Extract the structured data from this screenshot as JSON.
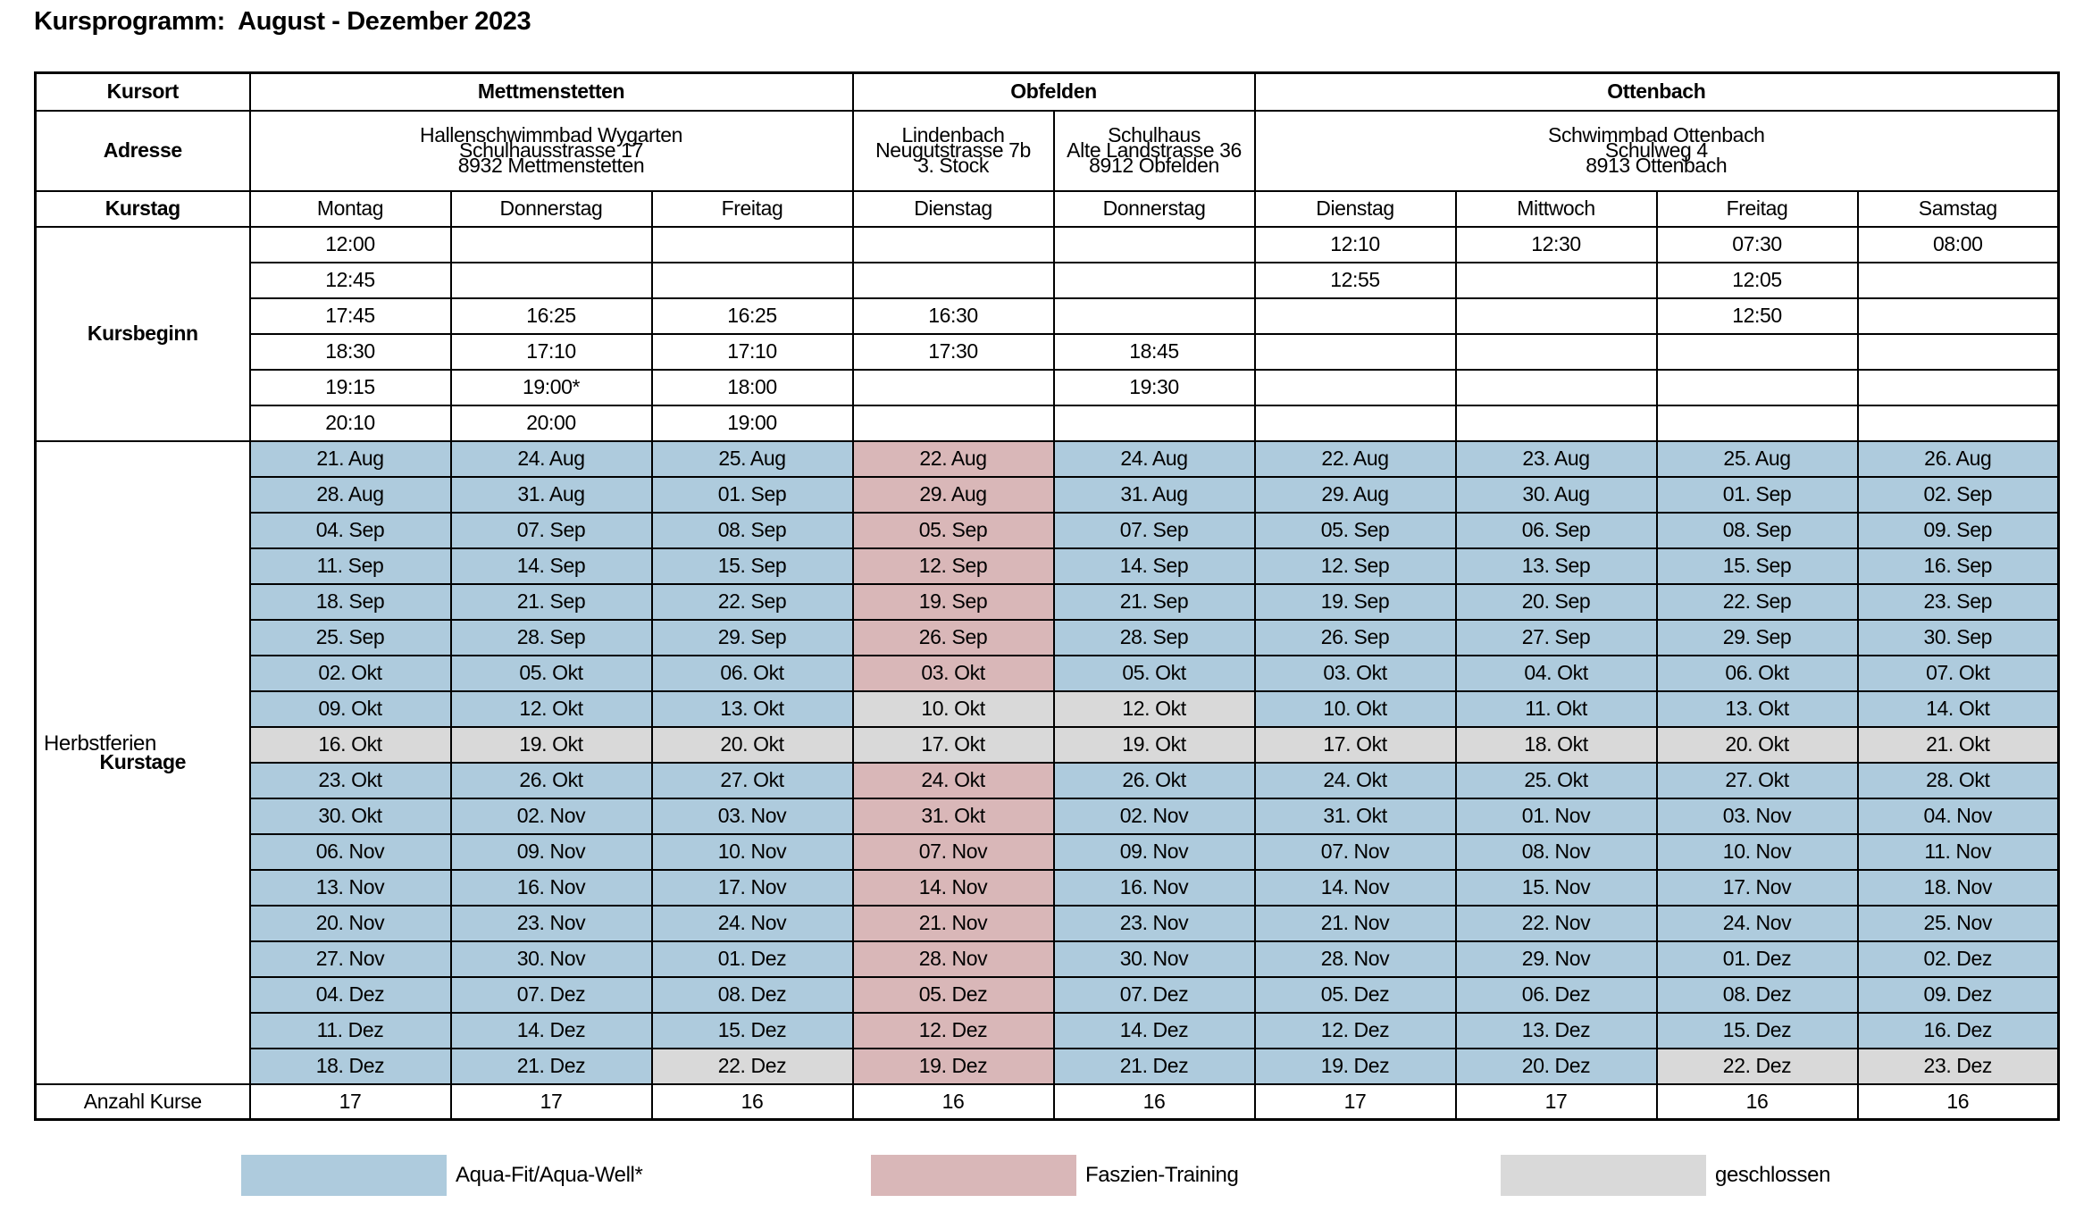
{
  "title": "Kursprogramm:  August - Dezember 2023",
  "colors": {
    "aqua_fit": "#aecbdd",
    "faszien_training": "#d9b7b8",
    "geschlossen": "#d9d9d9",
    "border": "#000000"
  },
  "table": {
    "labels": {
      "kursort": "Kursort",
      "adresse": "Adresse",
      "kurstag": "Kurstag",
      "kursbeginn": "Kursbeginn",
      "kurstage": "Kurstage",
      "herbstferien": "Herbstferien",
      "anzahl_kurse": "Anzahl Kurse"
    },
    "locations": [
      {
        "name": "Mettmenstetten",
        "colspan": 3,
        "addresses": [
          {
            "colspan": 3,
            "lines": [
              "Hallenschwimmbad Wygarten",
              "Schulhausstrasse 17",
              "8932 Mettmenstetten"
            ]
          }
        ]
      },
      {
        "name": "Obfelden",
        "colspan": 2,
        "addresses": [
          {
            "colspan": 1,
            "lines": [
              "Lindenbach",
              "Neugutstrasse 7b",
              "3. Stock"
            ]
          },
          {
            "colspan": 1,
            "lines": [
              "Schulhaus",
              "Alte Landstrasse 36",
              "8912 Obfelden"
            ]
          }
        ]
      },
      {
        "name": "Ottenbach",
        "colspan": 4,
        "addresses": [
          {
            "colspan": 4,
            "lines": [
              "Schwimmbad Ottenbach",
              "Schulweg 4",
              "8913 Ottenbach"
            ]
          }
        ]
      }
    ],
    "day_headers": [
      "Montag",
      "Donnerstag",
      "Freitag",
      "Dienstag",
      "Donnerstag",
      "Dienstag",
      "Mittwoch",
      "Freitag",
      "Samstag"
    ],
    "start_times": [
      [
        "12:00",
        "",
        "",
        "",
        "",
        "12:10",
        "12:30",
        "07:30",
        "08:00"
      ],
      [
        "12:45",
        "",
        "",
        "",
        "",
        "12:55",
        "",
        "12:05",
        ""
      ],
      [
        "17:45",
        "16:25",
        "16:25",
        "16:30",
        "",
        "",
        "",
        "12:50",
        ""
      ],
      [
        "18:30",
        "17:10",
        "17:10",
        "17:30",
        "18:45",
        "",
        "",
        "",
        ""
      ],
      [
        "19:15",
        "19:00*",
        "18:00",
        "",
        "19:30",
        "",
        "",
        "",
        ""
      ],
      [
        "20:10",
        "20:00",
        "19:00",
        "",
        "",
        "",
        "",
        "",
        ""
      ]
    ],
    "herbstferien_row_index": 8,
    "course_day_rows": [
      [
        [
          "21. Aug",
          "aqua_fit"
        ],
        [
          "24. Aug",
          "aqua_fit"
        ],
        [
          "25. Aug",
          "aqua_fit"
        ],
        [
          "22. Aug",
          "faszien_training"
        ],
        [
          "24. Aug",
          "aqua_fit"
        ],
        [
          "22. Aug",
          "aqua_fit"
        ],
        [
          "23. Aug",
          "aqua_fit"
        ],
        [
          "25. Aug",
          "aqua_fit"
        ],
        [
          "26. Aug",
          "aqua_fit"
        ]
      ],
      [
        [
          "28. Aug",
          "aqua_fit"
        ],
        [
          "31. Aug",
          "aqua_fit"
        ],
        [
          "01. Sep",
          "aqua_fit"
        ],
        [
          "29. Aug",
          "faszien_training"
        ],
        [
          "31. Aug",
          "aqua_fit"
        ],
        [
          "29. Aug",
          "aqua_fit"
        ],
        [
          "30. Aug",
          "aqua_fit"
        ],
        [
          "01. Sep",
          "aqua_fit"
        ],
        [
          "02. Sep",
          "aqua_fit"
        ]
      ],
      [
        [
          "04. Sep",
          "aqua_fit"
        ],
        [
          "07. Sep",
          "aqua_fit"
        ],
        [
          "08. Sep",
          "aqua_fit"
        ],
        [
          "05. Sep",
          "faszien_training"
        ],
        [
          "07. Sep",
          "aqua_fit"
        ],
        [
          "05. Sep",
          "aqua_fit"
        ],
        [
          "06. Sep",
          "aqua_fit"
        ],
        [
          "08. Sep",
          "aqua_fit"
        ],
        [
          "09. Sep",
          "aqua_fit"
        ]
      ],
      [
        [
          "11. Sep",
          "aqua_fit"
        ],
        [
          "14. Sep",
          "aqua_fit"
        ],
        [
          "15. Sep",
          "aqua_fit"
        ],
        [
          "12. Sep",
          "faszien_training"
        ],
        [
          "14. Sep",
          "aqua_fit"
        ],
        [
          "12. Sep",
          "aqua_fit"
        ],
        [
          "13. Sep",
          "aqua_fit"
        ],
        [
          "15. Sep",
          "aqua_fit"
        ],
        [
          "16. Sep",
          "aqua_fit"
        ]
      ],
      [
        [
          "18. Sep",
          "aqua_fit"
        ],
        [
          "21. Sep",
          "aqua_fit"
        ],
        [
          "22. Sep",
          "aqua_fit"
        ],
        [
          "19. Sep",
          "faszien_training"
        ],
        [
          "21. Sep",
          "aqua_fit"
        ],
        [
          "19. Sep",
          "aqua_fit"
        ],
        [
          "20. Sep",
          "aqua_fit"
        ],
        [
          "22. Sep",
          "aqua_fit"
        ],
        [
          "23. Sep",
          "aqua_fit"
        ]
      ],
      [
        [
          "25. Sep",
          "aqua_fit"
        ],
        [
          "28. Sep",
          "aqua_fit"
        ],
        [
          "29. Sep",
          "aqua_fit"
        ],
        [
          "26. Sep",
          "faszien_training"
        ],
        [
          "28. Sep",
          "aqua_fit"
        ],
        [
          "26. Sep",
          "aqua_fit"
        ],
        [
          "27. Sep",
          "aqua_fit"
        ],
        [
          "29. Sep",
          "aqua_fit"
        ],
        [
          "30. Sep",
          "aqua_fit"
        ]
      ],
      [
        [
          "02. Okt",
          "aqua_fit"
        ],
        [
          "05. Okt",
          "aqua_fit"
        ],
        [
          "06. Okt",
          "aqua_fit"
        ],
        [
          "03. Okt",
          "faszien_training"
        ],
        [
          "05. Okt",
          "aqua_fit"
        ],
        [
          "03. Okt",
          "aqua_fit"
        ],
        [
          "04. Okt",
          "aqua_fit"
        ],
        [
          "06. Okt",
          "aqua_fit"
        ],
        [
          "07. Okt",
          "aqua_fit"
        ]
      ],
      [
        [
          "09. Okt",
          "aqua_fit"
        ],
        [
          "12. Okt",
          "aqua_fit"
        ],
        [
          "13. Okt",
          "aqua_fit"
        ],
        [
          "10. Okt",
          "geschlossen"
        ],
        [
          "12. Okt",
          "geschlossen"
        ],
        [
          "10. Okt",
          "aqua_fit"
        ],
        [
          "11. Okt",
          "aqua_fit"
        ],
        [
          "13. Okt",
          "aqua_fit"
        ],
        [
          "14. Okt",
          "aqua_fit"
        ]
      ],
      [
        [
          "16. Okt",
          "geschlossen"
        ],
        [
          "19. Okt",
          "geschlossen"
        ],
        [
          "20. Okt",
          "geschlossen"
        ],
        [
          "17. Okt",
          "geschlossen"
        ],
        [
          "19. Okt",
          "geschlossen"
        ],
        [
          "17. Okt",
          "geschlossen"
        ],
        [
          "18. Okt",
          "geschlossen"
        ],
        [
          "20. Okt",
          "geschlossen"
        ],
        [
          "21. Okt",
          "geschlossen"
        ]
      ],
      [
        [
          "23. Okt",
          "aqua_fit"
        ],
        [
          "26. Okt",
          "aqua_fit"
        ],
        [
          "27. Okt",
          "aqua_fit"
        ],
        [
          "24. Okt",
          "faszien_training"
        ],
        [
          "26. Okt",
          "aqua_fit"
        ],
        [
          "24. Okt",
          "aqua_fit"
        ],
        [
          "25. Okt",
          "aqua_fit"
        ],
        [
          "27. Okt",
          "aqua_fit"
        ],
        [
          "28. Okt",
          "aqua_fit"
        ]
      ],
      [
        [
          "30. Okt",
          "aqua_fit"
        ],
        [
          "02. Nov",
          "aqua_fit"
        ],
        [
          "03. Nov",
          "aqua_fit"
        ],
        [
          "31. Okt",
          "faszien_training"
        ],
        [
          "02. Nov",
          "aqua_fit"
        ],
        [
          "31. Okt",
          "aqua_fit"
        ],
        [
          "01. Nov",
          "aqua_fit"
        ],
        [
          "03. Nov",
          "aqua_fit"
        ],
        [
          "04. Nov",
          "aqua_fit"
        ]
      ],
      [
        [
          "06. Nov",
          "aqua_fit"
        ],
        [
          "09. Nov",
          "aqua_fit"
        ],
        [
          "10. Nov",
          "aqua_fit"
        ],
        [
          "07. Nov",
          "faszien_training"
        ],
        [
          "09. Nov",
          "aqua_fit"
        ],
        [
          "07. Nov",
          "aqua_fit"
        ],
        [
          "08. Nov",
          "aqua_fit"
        ],
        [
          "10. Nov",
          "aqua_fit"
        ],
        [
          "11. Nov",
          "aqua_fit"
        ]
      ],
      [
        [
          "13. Nov",
          "aqua_fit"
        ],
        [
          "16. Nov",
          "aqua_fit"
        ],
        [
          "17. Nov",
          "aqua_fit"
        ],
        [
          "14. Nov",
          "faszien_training"
        ],
        [
          "16. Nov",
          "aqua_fit"
        ],
        [
          "14. Nov",
          "aqua_fit"
        ],
        [
          "15. Nov",
          "aqua_fit"
        ],
        [
          "17. Nov",
          "aqua_fit"
        ],
        [
          "18. Nov",
          "aqua_fit"
        ]
      ],
      [
        [
          "20. Nov",
          "aqua_fit"
        ],
        [
          "23. Nov",
          "aqua_fit"
        ],
        [
          "24. Nov",
          "aqua_fit"
        ],
        [
          "21. Nov",
          "faszien_training"
        ],
        [
          "23. Nov",
          "aqua_fit"
        ],
        [
          "21. Nov",
          "aqua_fit"
        ],
        [
          "22. Nov",
          "aqua_fit"
        ],
        [
          "24. Nov",
          "aqua_fit"
        ],
        [
          "25. Nov",
          "aqua_fit"
        ]
      ],
      [
        [
          "27. Nov",
          "aqua_fit"
        ],
        [
          "30. Nov",
          "aqua_fit"
        ],
        [
          "01. Dez",
          "aqua_fit"
        ],
        [
          "28. Nov",
          "faszien_training"
        ],
        [
          "30. Nov",
          "aqua_fit"
        ],
        [
          "28. Nov",
          "aqua_fit"
        ],
        [
          "29. Nov",
          "aqua_fit"
        ],
        [
          "01. Dez",
          "aqua_fit"
        ],
        [
          "02. Dez",
          "aqua_fit"
        ]
      ],
      [
        [
          "04. Dez",
          "aqua_fit"
        ],
        [
          "07. Dez",
          "aqua_fit"
        ],
        [
          "08. Dez",
          "aqua_fit"
        ],
        [
          "05. Dez",
          "faszien_training"
        ],
        [
          "07. Dez",
          "aqua_fit"
        ],
        [
          "05. Dez",
          "aqua_fit"
        ],
        [
          "06. Dez",
          "aqua_fit"
        ],
        [
          "08. Dez",
          "aqua_fit"
        ],
        [
          "09. Dez",
          "aqua_fit"
        ]
      ],
      [
        [
          "11. Dez",
          "aqua_fit"
        ],
        [
          "14. Dez",
          "aqua_fit"
        ],
        [
          "15. Dez",
          "aqua_fit"
        ],
        [
          "12. Dez",
          "faszien_training"
        ],
        [
          "14. Dez",
          "aqua_fit"
        ],
        [
          "12. Dez",
          "aqua_fit"
        ],
        [
          "13. Dez",
          "aqua_fit"
        ],
        [
          "15. Dez",
          "aqua_fit"
        ],
        [
          "16. Dez",
          "aqua_fit"
        ]
      ],
      [
        [
          "18. Dez",
          "aqua_fit"
        ],
        [
          "21. Dez",
          "aqua_fit"
        ],
        [
          "22. Dez",
          "geschlossen"
        ],
        [
          "19. Dez",
          "faszien_training"
        ],
        [
          "21. Dez",
          "aqua_fit"
        ],
        [
          "19. Dez",
          "aqua_fit"
        ],
        [
          "20. Dez",
          "aqua_fit"
        ],
        [
          "22. Dez",
          "geschlossen"
        ],
        [
          "23. Dez",
          "geschlossen"
        ]
      ]
    ],
    "anzahl_kurse": [
      "17",
      "17",
      "16",
      "16",
      "16",
      "17",
      "17",
      "16",
      "16"
    ]
  },
  "legend": [
    {
      "label": "Aqua-Fit/Aqua-Well*",
      "color": "aqua_fit"
    },
    {
      "label": "Faszien-Training",
      "color": "faszien_training"
    },
    {
      "label": "geschlossen",
      "color": "geschlossen"
    }
  ]
}
